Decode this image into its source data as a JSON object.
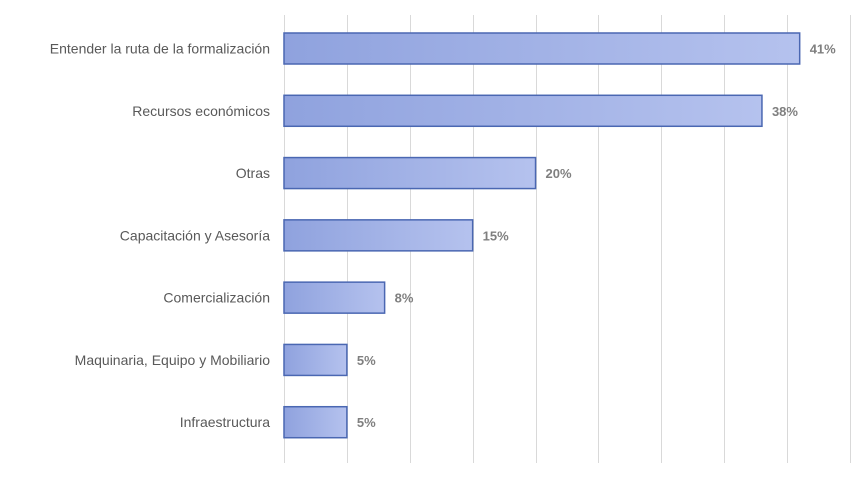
{
  "chart_data": {
    "type": "bar",
    "orientation": "horizontal",
    "title": "",
    "xlabel": "",
    "ylabel": "",
    "categories": [
      "Entender la ruta de la formalización",
      "Recursos económicos",
      "Otras",
      "Capacitación y Asesoría",
      "Comercialización",
      "Maquinaria, Equipo y Mobiliario",
      "Infraestructura"
    ],
    "values": [
      41,
      38,
      20,
      15,
      8,
      5,
      5
    ],
    "value_labels": [
      "41%",
      "38%",
      "20%",
      "15%",
      "8%",
      "5%",
      "5%"
    ],
    "xlim": [
      0,
      45
    ],
    "x_grid_step": 5,
    "grid": true,
    "legend": "none",
    "colors": {
      "bar_fill_left": "#8fa2de",
      "bar_fill_right": "#b5c2ee",
      "bar_stroke": "#4a67b2",
      "gridline": "#d9d9d9",
      "category_text": "#595959",
      "data_label_text": "#7f7f7f"
    }
  }
}
